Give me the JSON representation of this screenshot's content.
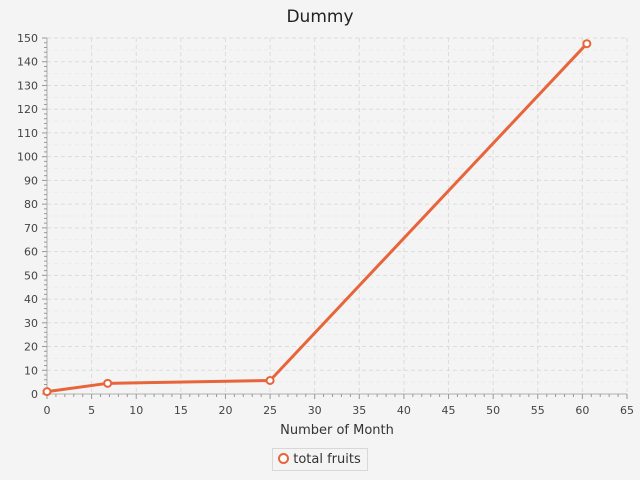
{
  "chart_data": {
    "type": "line",
    "title": "Dummy",
    "xlabel": "Number of Month",
    "ylabel": "",
    "xlim": [
      0,
      65
    ],
    "ylim": [
      0,
      150
    ],
    "x_ticks": [
      "0",
      "5",
      "10",
      "15",
      "20",
      "25",
      "30",
      "35",
      "40",
      "45",
      "50",
      "55",
      "60",
      "65"
    ],
    "y_ticks": [
      "0",
      "10",
      "20",
      "30",
      "40",
      "50",
      "60",
      "70",
      "80",
      "90",
      "100",
      "110",
      "120",
      "130",
      "140",
      "150"
    ],
    "grid": true,
    "legend_position": "bottom-center",
    "series": [
      {
        "name": "total fruits",
        "color": "#e8643a",
        "x": [
          0,
          6.8,
          25,
          60.5
        ],
        "y": [
          1,
          4.5,
          5.7,
          147.6
        ]
      }
    ]
  }
}
